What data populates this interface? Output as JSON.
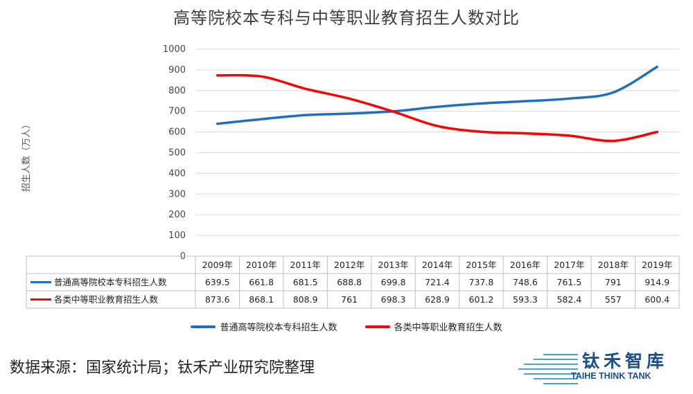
{
  "chart_data": {
    "type": "line",
    "title": "高等院校本专科与中等职业教育招生人数对比",
    "ylabel": "招生人数（万人）",
    "xlabel": "",
    "ylim": [
      0,
      1000
    ],
    "yticks": [
      "0",
      "100",
      "200",
      "300",
      "400",
      "500",
      "600",
      "700",
      "800",
      "900",
      "1000"
    ],
    "categories": [
      "2009年",
      "2010年",
      "2011年",
      "2012年",
      "2013年",
      "2014年",
      "2015年",
      "2016年",
      "2017年",
      "2018年",
      "2019年"
    ],
    "series": [
      {
        "name": "普通高等院校本专科招生人数",
        "color": "#1f6fc0",
        "values": [
          639.5,
          661.8,
          681.5,
          688.8,
          699.8,
          721.4,
          737.8,
          748.6,
          761.5,
          791,
          914.9
        ],
        "labels": [
          "639.5",
          "661.8",
          "681.5",
          "688.8",
          "699.8",
          "721.4",
          "737.8",
          "748.6",
          "761.5",
          "791",
          "914.9"
        ]
      },
      {
        "name": "各类中等职业教育招生人数",
        "color": "#ff0000",
        "values": [
          873.6,
          868.1,
          808.9,
          761,
          698.3,
          628.9,
          601.2,
          593.3,
          582.4,
          557,
          600.4
        ],
        "labels": [
          "873.6",
          "868.1",
          "808.9",
          "761",
          "698.3",
          "628.9",
          "601.2",
          "593.3",
          "582.4",
          "557",
          "600.4"
        ]
      }
    ],
    "grid": true,
    "legend": "bottom",
    "data_table": true
  },
  "footer": {
    "source": "数据来源：国家统计局；钛禾产业研究院整理",
    "logo_cn": "钛禾智库",
    "logo_en": "TAIHE THINK TANK"
  }
}
